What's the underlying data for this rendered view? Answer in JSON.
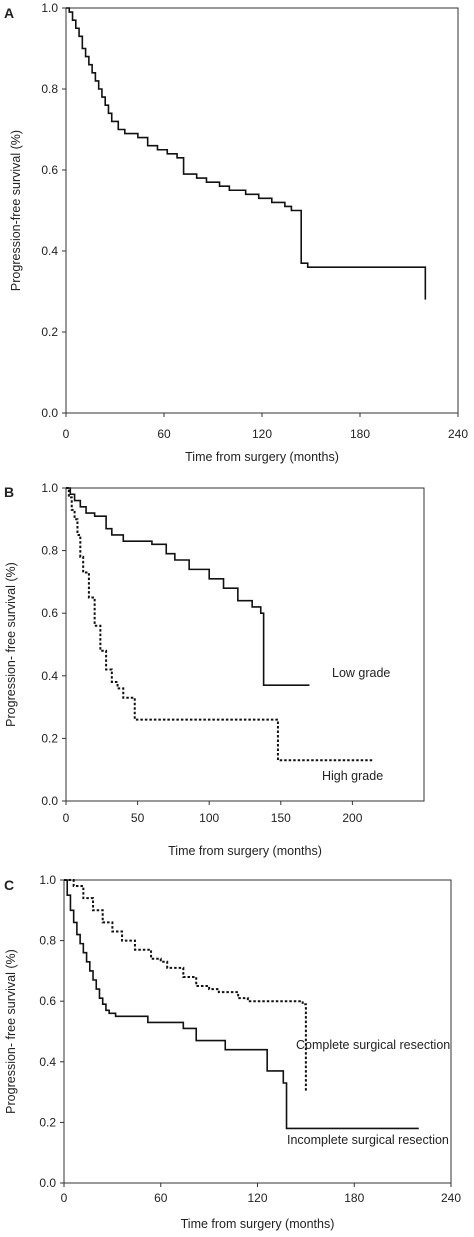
{
  "chart_data": [
    {
      "type": "line",
      "panel_letter": "A",
      "xlabel": "Time from surgery (months)",
      "ylabel": "Progression-free survival (%)",
      "xlim": [
        0,
        240
      ],
      "ylim": [
        0,
        1
      ],
      "xticks": [
        0,
        60,
        120,
        180,
        240
      ],
      "xtick_labels": [
        "0",
        "60",
        "120",
        "180",
        "240"
      ],
      "yticks": [
        0,
        0.2,
        0.4,
        0.6,
        0.8,
        1
      ],
      "ytick_labels": [
        "0.0",
        "0.2",
        "0.4",
        "0.6",
        "0.8",
        "1.0"
      ],
      "grid": false,
      "color": "#111111",
      "series": [
        {
          "style": "solid",
          "label": "",
          "x": [
            0,
            2,
            4,
            6,
            8,
            10,
            12,
            14,
            16,
            18,
            20,
            22,
            24,
            26,
            28,
            32,
            36,
            44,
            50,
            56,
            62,
            68,
            72,
            80,
            86,
            94,
            100,
            110,
            118,
            126,
            134,
            138,
            144,
            148,
            220
          ],
          "y": [
            1.0,
            0.99,
            0.97,
            0.95,
            0.93,
            0.9,
            0.88,
            0.86,
            0.84,
            0.82,
            0.8,
            0.78,
            0.76,
            0.74,
            0.72,
            0.7,
            0.69,
            0.68,
            0.66,
            0.65,
            0.64,
            0.63,
            0.59,
            0.58,
            0.57,
            0.56,
            0.55,
            0.54,
            0.53,
            0.52,
            0.51,
            0.5,
            0.37,
            0.36,
            0.28
          ]
        }
      ]
    },
    {
      "type": "line",
      "panel_letter": "B",
      "xlabel": "Time from surgery (months)",
      "ylabel": "Progression- free survival (%)",
      "xlim": [
        0,
        250
      ],
      "ylim": [
        0,
        1
      ],
      "xticks": [
        0,
        50,
        100,
        150,
        200
      ],
      "xtick_labels": [
        "0",
        "50",
        "100",
        "150",
        "200"
      ],
      "yticks": [
        0,
        0.2,
        0.4,
        0.6,
        0.8,
        1
      ],
      "ytick_labels": [
        "0.0",
        "0.2",
        "0.4",
        "0.6",
        "0.8",
        "1.0"
      ],
      "grid": false,
      "color": "#111111",
      "series": [
        {
          "style": "solid",
          "label": "Low grade",
          "x": [
            0,
            3,
            6,
            10,
            14,
            20,
            28,
            32,
            40,
            50,
            60,
            70,
            76,
            86,
            100,
            110,
            120,
            130,
            136,
            138,
            170
          ],
          "y": [
            1.0,
            0.98,
            0.96,
            0.94,
            0.92,
            0.91,
            0.87,
            0.85,
            0.83,
            0.83,
            0.82,
            0.79,
            0.77,
            0.74,
            0.71,
            0.68,
            0.64,
            0.62,
            0.6,
            0.37,
            0.37
          ]
        },
        {
          "style": "dotted",
          "label": "High grade",
          "x": [
            0,
            2,
            4,
            6,
            8,
            10,
            12,
            16,
            20,
            24,
            28,
            32,
            36,
            40,
            48,
            100,
            148,
            215
          ],
          "y": [
            1.0,
            0.97,
            0.93,
            0.9,
            0.85,
            0.78,
            0.73,
            0.65,
            0.56,
            0.48,
            0.42,
            0.38,
            0.36,
            0.33,
            0.26,
            0.26,
            0.13,
            0.13
          ]
        }
      ]
    },
    {
      "type": "line",
      "panel_letter": "C",
      "xlabel": "Time from surgery (months)",
      "ylabel": "Progression- free survival (%)",
      "xlim": [
        0,
        240
      ],
      "ylim": [
        0,
        1
      ],
      "xticks": [
        0,
        60,
        120,
        180,
        240
      ],
      "xtick_labels": [
        "0",
        "60",
        "120",
        "180",
        "240"
      ],
      "yticks": [
        0,
        0.2,
        0.4,
        0.6,
        0.8,
        1
      ],
      "ytick_labels": [
        "0.0",
        "0.2",
        "0.4",
        "0.6",
        "0.8",
        "1.0"
      ],
      "grid": false,
      "color": "#111111",
      "series": [
        {
          "style": "solid",
          "label": "Incomplete surgical resection",
          "x": [
            0,
            2,
            4,
            6,
            8,
            10,
            12,
            14,
            16,
            18,
            20,
            22,
            24,
            26,
            28,
            32,
            40,
            52,
            74,
            82,
            100,
            118,
            126,
            136,
            138,
            220
          ],
          "y": [
            1.0,
            0.95,
            0.9,
            0.86,
            0.82,
            0.79,
            0.76,
            0.73,
            0.7,
            0.67,
            0.64,
            0.61,
            0.59,
            0.57,
            0.56,
            0.55,
            0.55,
            0.53,
            0.51,
            0.47,
            0.44,
            0.44,
            0.37,
            0.33,
            0.18,
            0.18
          ]
        },
        {
          "style": "dotted",
          "label": "Complete surgical resection",
          "x": [
            0,
            6,
            12,
            18,
            24,
            30,
            36,
            44,
            54,
            60,
            64,
            74,
            82,
            90,
            96,
            102,
            108,
            114,
            118,
            128,
            140,
            148,
            150
          ],
          "y": [
            1.0,
            0.98,
            0.94,
            0.9,
            0.86,
            0.83,
            0.8,
            0.77,
            0.74,
            0.73,
            0.71,
            0.68,
            0.65,
            0.64,
            0.63,
            0.63,
            0.61,
            0.6,
            0.6,
            0.6,
            0.6,
            0.59,
            0.3
          ]
        }
      ]
    }
  ]
}
